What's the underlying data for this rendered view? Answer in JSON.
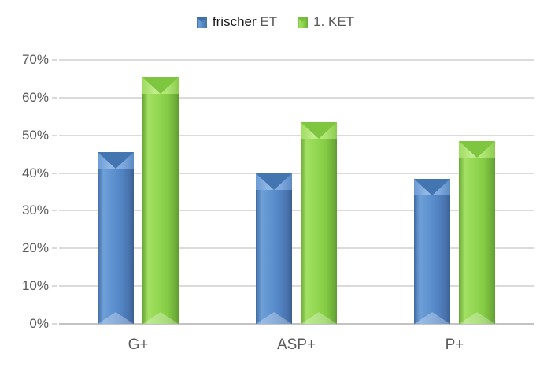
{
  "chart_data": {
    "type": "bar",
    "title": "",
    "categories": [
      "G+",
      "ASP+",
      "P+"
    ],
    "series": [
      {
        "name": "frischer ET",
        "color": "#4F81BD",
        "values": [
          45.5,
          40,
          38.5
        ]
      },
      {
        "name": "1. KET",
        "color": "#8CD44A",
        "values": [
          65.5,
          53.5,
          48.5
        ]
      }
    ],
    "xlabel": "",
    "ylabel": "",
    "ylim": [
      0,
      70
    ],
    "ytick_step": 10,
    "ytick_labels": [
      "0%",
      "10%",
      "20%",
      "30%",
      "40%",
      "50%",
      "60%",
      "70%"
    ],
    "ytick_format": "percent",
    "grid": true,
    "legend_position": "top"
  },
  "legend": {
    "items": [
      {
        "text_strong": "frischer ",
        "text_rest": "ET"
      },
      {
        "text_strong": "",
        "text_rest": "1. KET"
      }
    ]
  },
  "colors": {
    "series1_blue": "#4F81BD",
    "series2_green": "#8CD44A",
    "gridline": "#DBDBDB",
    "axis_line": "#C3C3C3",
    "axis_text": "#595959",
    "legend_text_gray": "#595959",
    "legend_text_black": "#1A1A1A",
    "background": "#FFFFFF"
  }
}
